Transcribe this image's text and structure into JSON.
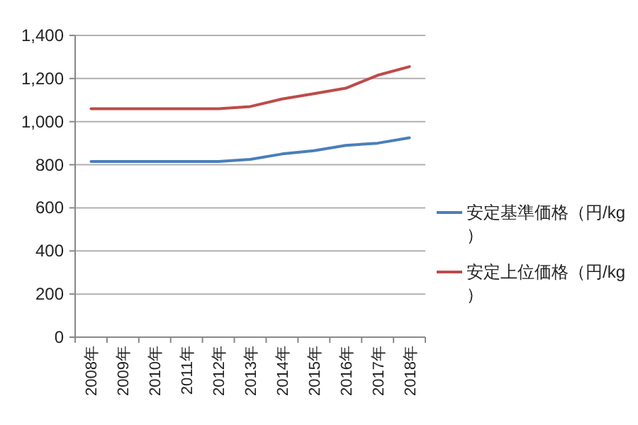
{
  "chart_data": {
    "type": "line",
    "categories": [
      "2008年",
      "2009年",
      "2010年",
      "2011年",
      "2012年",
      "2013年",
      "2014年",
      "2015年",
      "2016年",
      "2017年",
      "2018年"
    ],
    "series": [
      {
        "name": "安定基準価格（円/kg）",
        "color": "#4a7ebb",
        "values": [
          815,
          815,
          815,
          815,
          815,
          825,
          850,
          865,
          890,
          900,
          925
        ]
      },
      {
        "name": "安定上位価格（円/kg）",
        "color": "#be4b48",
        "values": [
          1060,
          1060,
          1060,
          1060,
          1060,
          1070,
          1105,
          1130,
          1155,
          1215,
          1255
        ]
      }
    ],
    "ylim": [
      0,
      1400
    ],
    "yticks": [
      0,
      {
        "value": 200,
        "label": "200"
      },
      {
        "value": 400,
        "label": "400"
      },
      {
        "value": 600,
        "label": "600"
      },
      {
        "value": 800,
        "label": "800"
      },
      {
        "value": 1000,
        "label": "1,000"
      },
      {
        "value": 1200,
        "label": "1,200"
      },
      {
        "value": 1400,
        "label": "1,400"
      }
    ],
    "grid": "y",
    "legend": "right",
    "marker": "none",
    "line_style": "solid"
  }
}
